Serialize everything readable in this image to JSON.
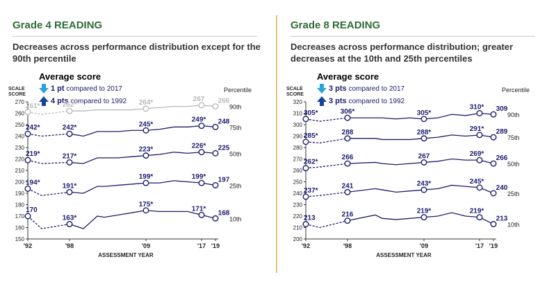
{
  "axis_top_label": "SCALE",
  "axis_bottom_label": "SCORE",
  "percentile_header": "Percentile",
  "avg_title": "Average score",
  "x_axis_label": "ASSESSMENT YEAR",
  "colors": {
    "title_green": "#2f6b38",
    "series_navy": "#1a1a6e",
    "series_gray": "#b9b9b9",
    "arrow_light": "#29a3dc",
    "arrow_dark": "#14449b",
    "divider_gold": "#e6c26a"
  },
  "panels": [
    {
      "grade_title": "Grade 4 READING",
      "subtitle": "Decreases across performance distribution except for the 90th percentile",
      "compare": [
        {
          "arrow": "down-arrow",
          "pts": "1 pt",
          "text": " compared to 2017"
        },
        {
          "arrow": "up-arrow",
          "pts": "4 pts",
          "text": " compared to 1992"
        }
      ]
    },
    {
      "grade_title": "Grade 8 READING",
      "subtitle": "Decreases across performance distribution; greater decreases at the 10th and 25th percentiles",
      "compare": [
        {
          "arrow": "down-arrow",
          "pts": "3 pts",
          "text": " compared to 2017"
        },
        {
          "arrow": "up-arrow",
          "pts": "3 pts",
          "text": " compared to 1992"
        }
      ]
    }
  ],
  "chart_data": [
    {
      "type": "line",
      "ylim": [
        150,
        270
      ],
      "y_ticks": [
        150,
        160,
        170,
        180,
        190,
        200,
        210,
        220,
        230,
        240,
        250,
        260,
        270
      ],
      "xlim": [
        1992,
        2019
      ],
      "x_ticks": [
        1992,
        1998,
        2009,
        2017,
        2019
      ],
      "x_tick_labels": [
        "'92",
        "'98",
        "'09",
        "'17",
        "'19"
      ],
      "series": [
        {
          "name": "90th",
          "color": "#b9b9b9",
          "x": [
            1992,
            1994,
            1998,
            2000,
            2002,
            2003,
            2005,
            2007,
            2009,
            2011,
            2013,
            2015,
            2017,
            2019
          ],
          "values": [
            261,
            259,
            262,
            262,
            263,
            263,
            263,
            263,
            264,
            265,
            266,
            266,
            267,
            266
          ],
          "labels": [
            {
              "x": 1992,
              "text": "261*"
            },
            {
              "x": 1998,
              "text": "262*"
            },
            {
              "x": 2009,
              "text": "264*"
            },
            {
              "x": 2017,
              "text": "267"
            },
            {
              "x": 2019,
              "text": "266"
            }
          ]
        },
        {
          "name": "75th",
          "color": "#1a1a6e",
          "x": [
            1992,
            1994,
            1998,
            2000,
            2002,
            2003,
            2005,
            2007,
            2009,
            2011,
            2013,
            2015,
            2017,
            2019
          ],
          "values": [
            242,
            240,
            242,
            240,
            244,
            244,
            244,
            245,
            245,
            246,
            248,
            248,
            249,
            248
          ],
          "labels": [
            {
              "x": 1992,
              "text": "242*"
            },
            {
              "x": 1998,
              "text": "242*"
            },
            {
              "x": 2009,
              "text": "245*"
            },
            {
              "x": 2017,
              "text": "249*"
            },
            {
              "x": 2019,
              "text": "248"
            }
          ]
        },
        {
          "name": "50th",
          "color": "#1a1a6e",
          "x": [
            1992,
            1994,
            1998,
            2000,
            2002,
            2003,
            2005,
            2007,
            2009,
            2011,
            2013,
            2015,
            2017,
            2019
          ],
          "values": [
            219,
            216,
            217,
            216,
            221,
            221,
            221,
            222,
            223,
            224,
            226,
            225,
            226,
            225
          ],
          "labels": [
            {
              "x": 1992,
              "text": "219*"
            },
            {
              "x": 1998,
              "text": "217*"
            },
            {
              "x": 2009,
              "text": "223*"
            },
            {
              "x": 2017,
              "text": "226*"
            },
            {
              "x": 2019,
              "text": "225"
            }
          ]
        },
        {
          "name": "25th",
          "color": "#1a1a6e",
          "x": [
            1992,
            1994,
            1998,
            2000,
            2002,
            2003,
            2005,
            2007,
            2009,
            2011,
            2013,
            2015,
            2017,
            2019
          ],
          "values": [
            194,
            188,
            191,
            190,
            196,
            196,
            197,
            198,
            199,
            199,
            201,
            200,
            199,
            197
          ],
          "labels": [
            {
              "x": 1992,
              "text": "194*"
            },
            {
              "x": 1998,
              "text": "191*"
            },
            {
              "x": 2009,
              "text": "199*"
            },
            {
              "x": 2017,
              "text": "199*"
            },
            {
              "x": 2019,
              "text": "197"
            }
          ]
        },
        {
          "name": "10th",
          "color": "#1a1a6e",
          "x": [
            1992,
            1994,
            1998,
            2000,
            2002,
            2003,
            2005,
            2007,
            2009,
            2011,
            2013,
            2015,
            2017,
            2019
          ],
          "values": [
            170,
            159,
            163,
            159,
            170,
            169,
            171,
            173,
            175,
            174,
            174,
            174,
            171,
            168
          ],
          "labels": [
            {
              "x": 1992,
              "text": "170"
            },
            {
              "x": 1998,
              "text": "163*"
            },
            {
              "x": 2009,
              "text": "175*"
            },
            {
              "x": 2017,
              "text": "171*"
            },
            {
              "x": 2019,
              "text": "168"
            }
          ]
        }
      ]
    },
    {
      "type": "line",
      "ylim": [
        200,
        320
      ],
      "y_ticks": [
        200,
        210,
        220,
        230,
        240,
        250,
        260,
        270,
        280,
        290,
        300,
        310,
        320
      ],
      "xlim": [
        1992,
        2019
      ],
      "x_ticks": [
        1992,
        1998,
        2009,
        2017,
        2019
      ],
      "x_tick_labels": [
        "'92",
        "'98",
        "'09",
        "'17",
        "'19"
      ],
      "series": [
        {
          "name": "90th",
          "color": "#1a1a6e",
          "x": [
            1992,
            1994,
            1998,
            2002,
            2003,
            2005,
            2007,
            2009,
            2011,
            2013,
            2015,
            2017,
            2019
          ],
          "values": [
            305,
            303,
            306,
            306,
            306,
            305,
            306,
            305,
            306,
            309,
            308,
            310,
            309
          ],
          "labels": [
            {
              "x": 1992,
              "text": "305*"
            },
            {
              "x": 1998,
              "text": "306*"
            },
            {
              "x": 2009,
              "text": "305*"
            },
            {
              "x": 2017,
              "text": "310*"
            },
            {
              "x": 2019,
              "text": "309"
            }
          ]
        },
        {
          "name": "75th",
          "color": "#1a1a6e",
          "x": [
            1992,
            1994,
            1998,
            2002,
            2003,
            2005,
            2007,
            2009,
            2011,
            2013,
            2015,
            2017,
            2019
          ],
          "values": [
            285,
            284,
            288,
            288,
            287,
            287,
            287,
            288,
            289,
            291,
            290,
            291,
            289
          ],
          "labels": [
            {
              "x": 1992,
              "text": "285*"
            },
            {
              "x": 1998,
              "text": "288"
            },
            {
              "x": 2009,
              "text": "288*"
            },
            {
              "x": 2017,
              "text": "291*"
            },
            {
              "x": 2019,
              "text": "289"
            }
          ]
        },
        {
          "name": "50th",
          "color": "#1a1a6e",
          "x": [
            1992,
            1994,
            1998,
            2002,
            2003,
            2005,
            2007,
            2009,
            2011,
            2013,
            2015,
            2017,
            2019
          ],
          "values": [
            262,
            263,
            266,
            267,
            266,
            265,
            266,
            267,
            268,
            270,
            269,
            269,
            266
          ],
          "labels": [
            {
              "x": 1992,
              "text": "262*"
            },
            {
              "x": 1998,
              "text": "266"
            },
            {
              "x": 2009,
              "text": "267"
            },
            {
              "x": 2017,
              "text": "269*"
            },
            {
              "x": 2019,
              "text": "266"
            }
          ]
        },
        {
          "name": "25th",
          "color": "#1a1a6e",
          "x": [
            1992,
            1994,
            1998,
            2002,
            2003,
            2005,
            2007,
            2009,
            2011,
            2013,
            2015,
            2017,
            2019
          ],
          "values": [
            237,
            238,
            241,
            244,
            243,
            241,
            242,
            243,
            244,
            247,
            246,
            245,
            240
          ],
          "labels": [
            {
              "x": 1992,
              "text": "237*"
            },
            {
              "x": 1998,
              "text": "241"
            },
            {
              "x": 2009,
              "text": "243*"
            },
            {
              "x": 2017,
              "text": "245*"
            },
            {
              "x": 2019,
              "text": "240"
            }
          ]
        },
        {
          "name": "10th",
          "color": "#1a1a6e",
          "x": [
            1992,
            1994,
            1998,
            2002,
            2003,
            2005,
            2007,
            2009,
            2011,
            2013,
            2015,
            2017,
            2019
          ],
          "values": [
            213,
            210,
            216,
            221,
            218,
            217,
            218,
            219,
            220,
            223,
            220,
            219,
            213
          ],
          "labels": [
            {
              "x": 1992,
              "text": "213"
            },
            {
              "x": 1998,
              "text": "216"
            },
            {
              "x": 2009,
              "text": "219*"
            },
            {
              "x": 2017,
              "text": "219*"
            },
            {
              "x": 2019,
              "text": "213"
            }
          ]
        }
      ]
    }
  ]
}
